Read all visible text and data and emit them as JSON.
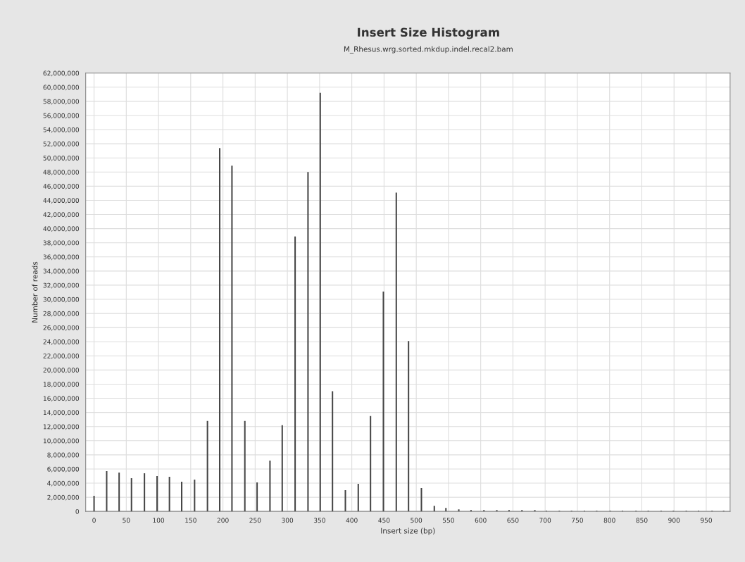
{
  "chart_data": {
    "type": "bar",
    "title": "Insert Size Histogram",
    "subtitle": "M_Rhesus.wrg.sorted.mkdup.indel.recal2.bam",
    "xlabel": "Insert size (bp)",
    "ylabel": "Number of reads",
    "x": [
      0,
      19.6,
      38.9,
      58.1,
      78.2,
      97.8,
      117,
      136,
      156,
      176,
      195,
      214,
      234,
      253,
      273,
      292,
      312,
      332,
      351,
      370,
      390,
      410,
      429,
      449,
      469,
      488,
      508,
      528,
      546,
      566,
      585,
      605,
      625,
      644,
      664,
      684,
      702,
      722,
      741,
      761,
      780,
      801,
      820,
      841,
      860,
      880,
      899,
      919,
      938,
      959,
      977
    ],
    "series": [
      {
        "color": "#444444",
        "values": [
          2200000,
          5700000,
          5500000,
          4700000,
          5400000,
          5000000,
          4900000,
          4200000,
          4500000,
          12800000,
          51400000,
          48900000,
          12800000,
          4100000,
          7200000,
          12200000,
          38900000,
          48000000,
          59200000,
          17000000,
          3000000,
          3900000,
          13500000,
          31100000,
          45100000,
          24100000,
          3300000,
          800000,
          500000,
          300000,
          200000,
          200000,
          200000,
          200000,
          200000,
          200000,
          100000,
          100000,
          100000,
          100000,
          100000,
          100000,
          100000,
          100000,
          100000,
          100000,
          100000,
          100000,
          100000,
          100000,
          100000
        ]
      }
    ],
    "xlim": [
      -13,
      987
    ],
    "xticks": [
      0,
      50,
      100,
      150,
      200,
      250,
      300,
      350,
      400,
      450,
      500,
      550,
      600,
      650,
      700,
      750,
      800,
      850,
      900,
      950
    ],
    "ylim": [
      0,
      62000000
    ],
    "yticks": [
      0,
      {
        "value": 2000000,
        "label": "2,000,000"
      },
      {
        "value": 4000000,
        "label": "4,000,000"
      },
      {
        "value": 6000000,
        "label": "6,000,000"
      },
      {
        "value": 8000000,
        "label": "8,000,000"
      },
      {
        "value": 10000000,
        "label": "10,000,000"
      },
      {
        "value": 12000000,
        "label": "12,000,000"
      },
      {
        "value": 14000000,
        "label": "14,000,000"
      },
      {
        "value": 16000000,
        "label": "16,000,000"
      },
      {
        "value": 18000000,
        "label": "18,000,000"
      },
      {
        "value": 20000000,
        "label": "20,000,000"
      },
      {
        "value": 22000000,
        "label": "22,000,000"
      },
      {
        "value": 24000000,
        "label": "24,000,000"
      },
      {
        "value": 26000000,
        "label": "26,000,000"
      },
      {
        "value": 28000000,
        "label": "28,000,000"
      },
      {
        "value": 30000000,
        "label": "30,000,000"
      },
      {
        "value": 32000000,
        "label": "32,000,000"
      },
      {
        "value": 34000000,
        "label": "34,000,000"
      },
      {
        "value": 36000000,
        "label": "36,000,000"
      },
      {
        "value": 38000000,
        "label": "38,000,000"
      },
      {
        "value": 40000000,
        "label": "40,000,000"
      },
      {
        "value": 42000000,
        "label": "42,000,000"
      },
      {
        "value": 44000000,
        "label": "44,000,000"
      },
      {
        "value": 46000000,
        "label": "46,000,000"
      },
      {
        "value": 48000000,
        "label": "48,000,000"
      },
      {
        "value": 50000000,
        "label": "50,000,000"
      },
      {
        "value": 52000000,
        "label": "52,000,000"
      },
      {
        "value": 54000000,
        "label": "54,000,000"
      },
      {
        "value": 56000000,
        "label": "56,000,000"
      },
      {
        "value": 58000000,
        "label": "58,000,000"
      },
      {
        "value": 60000000,
        "label": "60,000,000"
      },
      {
        "value": 62000000,
        "label": "62,000,000"
      }
    ],
    "grid": true
  }
}
